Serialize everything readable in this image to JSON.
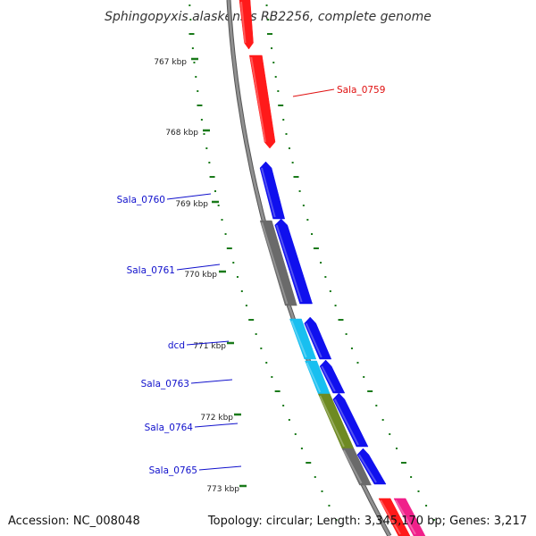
{
  "title": "Sphingopyxis alaskensis RB2256, complete genome",
  "footer": {
    "accession": "Accession: NC_008048",
    "summary": "Topology: circular; Length: 3,345,170 bp; Genes: 3,217"
  },
  "kbp_ticks": [
    "767 kbp",
    "768 kbp",
    "769 kbp",
    "770 kbp",
    "771 kbp",
    "772 kbp",
    "773 kbp"
  ],
  "colors": {
    "backbone": "#909090",
    "backbone_edge": "#555555",
    "tick": "#1a7a1a",
    "red": "#ff1a1a",
    "blue": "#1010ee",
    "gray": "#6a6a6a",
    "cyan": "#18bff0",
    "olive": "#6e8a22",
    "pink": "#f0208a",
    "label_blue": "#1010cc",
    "label_red": "#e01010"
  },
  "gene_labels": [
    "Sala_0759",
    "Sala_0760",
    "Sala_0761",
    "dcd",
    "Sala_0763",
    "Sala_0764",
    "Sala_0765"
  ]
}
